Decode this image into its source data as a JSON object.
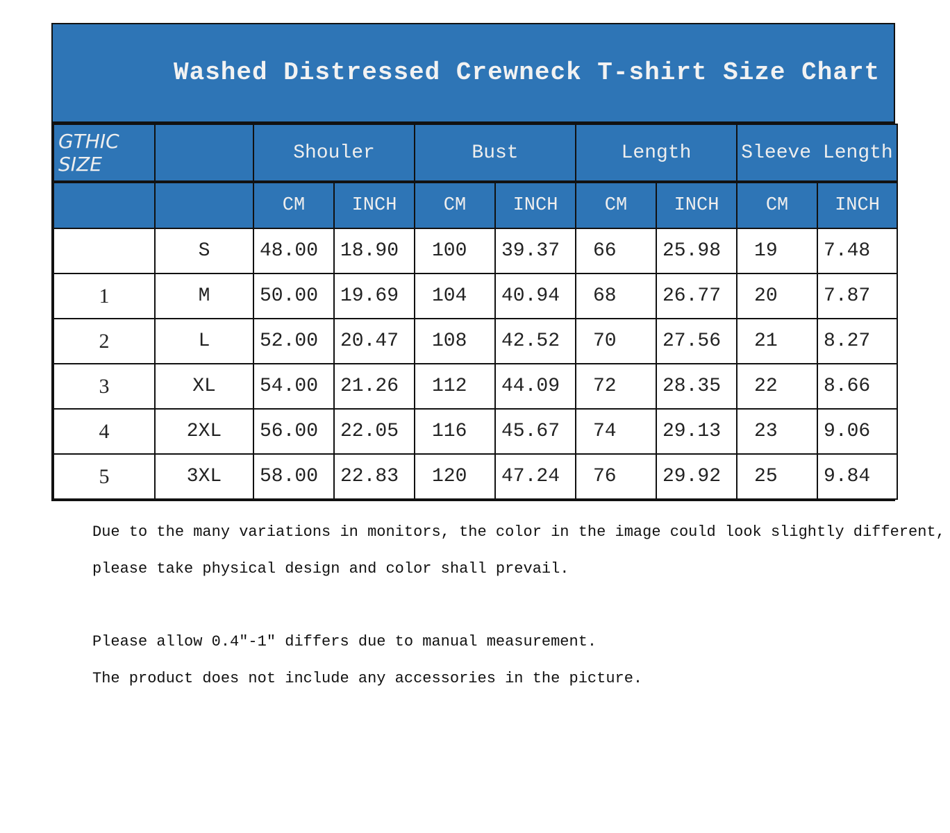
{
  "title": "Washed Distressed Crewneck T-shirt Size Chart",
  "header": {
    "label": "GTHIC SIZE",
    "groups": [
      "Shouler",
      "Bust",
      "Length",
      "Sleeve Length"
    ],
    "units": [
      "CM",
      "INCH",
      "CM",
      "INCH",
      "CM",
      "INCH",
      "CM",
      "INCH"
    ]
  },
  "rows": [
    {
      "num": "",
      "size": "S",
      "values": [
        "48.00",
        "18.90",
        "100",
        "39.37",
        "66",
        "25.98",
        "19",
        "7.48"
      ]
    },
    {
      "num": "1",
      "size": "M",
      "values": [
        "50.00",
        "19.69",
        "104",
        "40.94",
        "68",
        "26.77",
        "20",
        "7.87"
      ]
    },
    {
      "num": "2",
      "size": "L",
      "values": [
        "52.00",
        "20.47",
        "108",
        "42.52",
        "70",
        "27.56",
        "21",
        "8.27"
      ]
    },
    {
      "num": "3",
      "size": "XL",
      "values": [
        "54.00",
        "21.26",
        "112",
        "44.09",
        "72",
        "28.35",
        "22",
        "8.66"
      ]
    },
    {
      "num": "4",
      "size": "2XL",
      "values": [
        "56.00",
        "22.05",
        "116",
        "45.67",
        "74",
        "29.13",
        "23",
        "9.06"
      ]
    },
    {
      "num": "5",
      "size": "3XL",
      "values": [
        "58.00",
        "22.83",
        "120",
        "47.24",
        "76",
        "29.92",
        "25",
        "9.84"
      ]
    }
  ],
  "notes": [
    "Due to the many variations in monitors, the color in the image could look slightly different,",
    " please take physical design and color shall prevail.",
    "Please allow 0.4\"-1\" differs due to manual measurement.",
    "The product does not include any accessories in the picture."
  ],
  "colors": {
    "header_blue": "#2e75b6",
    "header_text": "#eeeeee",
    "border": "#111111"
  }
}
